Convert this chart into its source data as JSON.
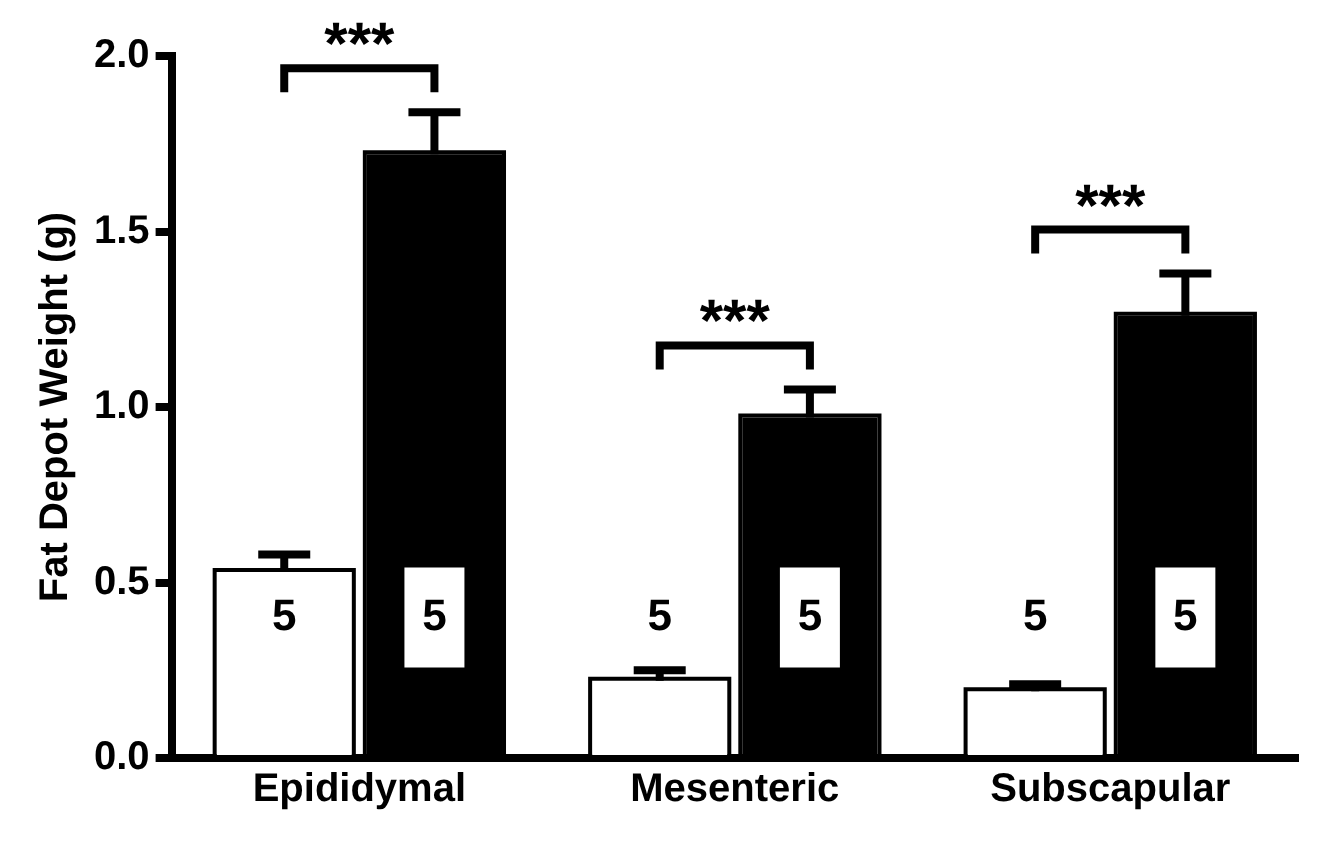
{
  "chart_data": {
    "type": "bar",
    "ylabel": "Fat Depot Weight (g)",
    "categories": [
      "Epididymal",
      "Mesenteric",
      "Subscapular"
    ],
    "series": [
      {
        "color": "#ffffff",
        "values": [
          0.53,
          0.22,
          0.19
        ],
        "errors": [
          0.05,
          0.03,
          0.02
        ]
      },
      {
        "color": "#000000",
        "values": [
          1.72,
          0.97,
          1.26
        ],
        "errors": [
          0.12,
          0.08,
          0.12
        ]
      }
    ],
    "ylim": [
      0,
      2
    ],
    "yticks": [
      {
        "value": 0,
        "label": "0.0"
      },
      {
        "value": 0.5,
        "label": "0.5"
      },
      {
        "value": 1,
        "label": "1.0"
      },
      {
        "value": 1.5,
        "label": "1.5"
      },
      {
        "value": 2,
        "label": "2.0"
      }
    ],
    "grid": false,
    "legend": false,
    "annotations": [
      "***",
      "***",
      "***",
      "5",
      "5",
      "5",
      "5",
      "5",
      "5"
    ]
  }
}
